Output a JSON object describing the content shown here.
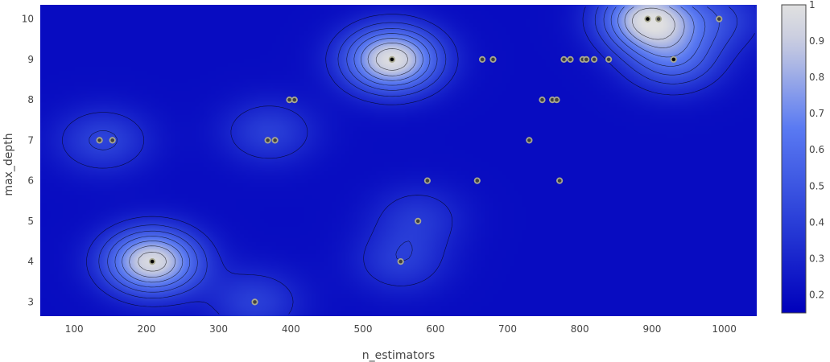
{
  "chart_data": {
    "type": "heatmap",
    "subtype": "contour",
    "title": "",
    "xlabel": "n_estimators",
    "ylabel": "max_depth",
    "xlim": [
      53,
      1045
    ],
    "ylim": [
      2.65,
      10.35
    ],
    "x_ticks": [
      100,
      200,
      300,
      400,
      500,
      600,
      700,
      800,
      900,
      1000
    ],
    "y_ticks": [
      3,
      4,
      5,
      6,
      7,
      8,
      9,
      10
    ],
    "colorbar": {
      "range": [
        0.15,
        1.0
      ],
      "ticks": [
        0.2,
        0.3,
        0.4,
        0.5,
        0.6,
        0.7,
        0.8,
        0.9,
        1
      ]
    },
    "colorscale": [
      "#0000bb",
      "#2a3fd8",
      "#5a7af2",
      "#c8cce0",
      "#e0e0e0"
    ],
    "contour_color": "#000000",
    "points": [
      {
        "x": 135,
        "y": 7,
        "highlight": false
      },
      {
        "x": 153,
        "y": 7,
        "highlight": false
      },
      {
        "x": 208,
        "y": 4,
        "highlight": true
      },
      {
        "x": 350,
        "y": 3,
        "highlight": false
      },
      {
        "x": 368,
        "y": 7,
        "highlight": false
      },
      {
        "x": 378,
        "y": 7,
        "highlight": false
      },
      {
        "x": 398,
        "y": 8,
        "highlight": false
      },
      {
        "x": 405,
        "y": 8,
        "highlight": false
      },
      {
        "x": 540,
        "y": 9,
        "highlight": true
      },
      {
        "x": 552,
        "y": 4,
        "highlight": false
      },
      {
        "x": 576,
        "y": 5,
        "highlight": false
      },
      {
        "x": 589,
        "y": 6,
        "highlight": false
      },
      {
        "x": 658,
        "y": 6,
        "highlight": false
      },
      {
        "x": 665,
        "y": 9,
        "highlight": false
      },
      {
        "x": 680,
        "y": 9,
        "highlight": false
      },
      {
        "x": 730,
        "y": 7,
        "highlight": false
      },
      {
        "x": 748,
        "y": 8,
        "highlight": false
      },
      {
        "x": 762,
        "y": 8,
        "highlight": false
      },
      {
        "x": 768,
        "y": 8,
        "highlight": false
      },
      {
        "x": 772,
        "y": 6,
        "highlight": false
      },
      {
        "x": 778,
        "y": 9,
        "highlight": false
      },
      {
        "x": 787,
        "y": 9,
        "highlight": false
      },
      {
        "x": 804,
        "y": 9,
        "highlight": false
      },
      {
        "x": 809,
        "y": 9,
        "highlight": false
      },
      {
        "x": 820,
        "y": 9,
        "highlight": false
      },
      {
        "x": 840,
        "y": 9,
        "highlight": false
      },
      {
        "x": 894,
        "y": 10,
        "highlight": true
      },
      {
        "x": 909,
        "y": 10,
        "highlight": false
      },
      {
        "x": 930,
        "y": 9,
        "highlight": true
      },
      {
        "x": 993,
        "y": 10,
        "highlight": false
      }
    ],
    "peaks": [
      {
        "x": 208,
        "y": 4,
        "value": 0.97
      },
      {
        "x": 540,
        "y": 9,
        "value": 0.99
      },
      {
        "x": 895,
        "y": 10,
        "value": 0.95
      },
      {
        "x": 930,
        "y": 9,
        "value": 0.55
      },
      {
        "x": 140,
        "y": 7,
        "value": 0.42
      },
      {
        "x": 370,
        "y": 7.2,
        "value": 0.4
      },
      {
        "x": 993,
        "y": 10,
        "value": 0.4
      },
      {
        "x": 350,
        "y": 3,
        "value": 0.4
      },
      {
        "x": 552,
        "y": 4,
        "value": 0.38
      },
      {
        "x": 576,
        "y": 5.1,
        "value": 0.36
      }
    ]
  }
}
